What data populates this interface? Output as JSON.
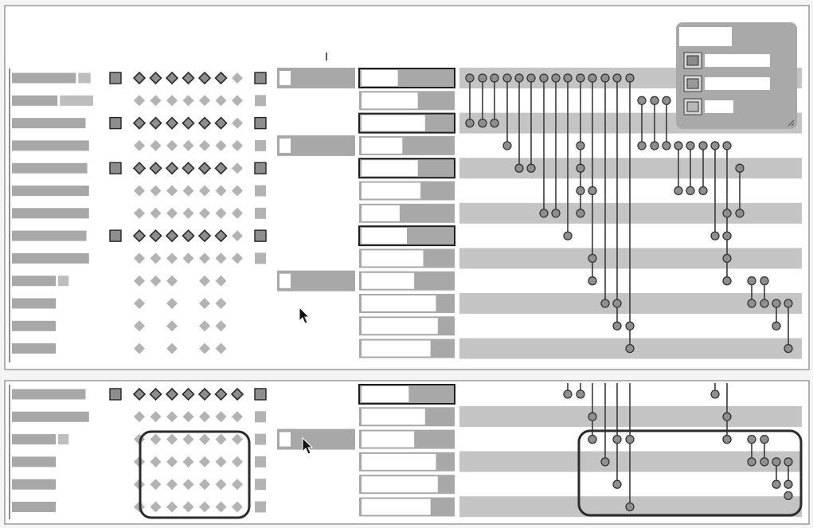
{
  "colors": {
    "background": "#f4f4f4",
    "panel": "#ffffff",
    "panel_border": "#9a9a9a",
    "bar": "#a8a8a8",
    "bar_light": "#bdbdbd",
    "band": "#c4c4c4",
    "diamond_outline": "#2a2a2a",
    "diamond_fill": "#8e8e8e",
    "diamond_faded": "#b3b3b3",
    "node": "#8f8f8f",
    "node_stroke": "#333333",
    "link": "#3a3a3a",
    "highlight": "#2b2b2b"
  },
  "legend": {
    "title": "",
    "items": [
      {
        "label": "",
        "swatch_level": "dark"
      },
      {
        "label": "",
        "swatch_level": "medium"
      },
      {
        "label": "",
        "swatch_level": "light"
      }
    ]
  },
  "panel_top": {
    "rows": [
      {
        "bar1": 0.73,
        "bar2": 0.14,
        "marker": true,
        "diamonds": "outlined",
        "box_fill": 0.0
      },
      {
        "bar1": 0.52,
        "bar2": 0.38,
        "marker": false,
        "diamonds": "faded",
        "box_fill": 0.0
      },
      {
        "bar1": 0.84,
        "bar2": 0.0,
        "marker": true,
        "diamonds": "outlined",
        "box_fill": 0.0
      },
      {
        "bar1": 0.88,
        "bar2": 0.0,
        "marker": false,
        "diamonds": "faded",
        "box_fill": 0.0
      },
      {
        "bar1": 0.86,
        "bar2": 0.0,
        "marker": true,
        "diamonds": "outlined",
        "box_fill": 0.0
      },
      {
        "bar1": 0.88,
        "bar2": 0.0,
        "marker": false,
        "diamonds": "faded",
        "box_fill": 0.0
      },
      {
        "bar1": 0.88,
        "bar2": 0.0,
        "marker": false,
        "diamonds": "faded",
        "box_fill": 0.0
      },
      {
        "bar1": 0.85,
        "bar2": 0.0,
        "marker": true,
        "diamonds": "outlined",
        "box_fill": 0.0
      },
      {
        "bar1": 0.88,
        "bar2": 0.0,
        "marker": false,
        "diamonds": "faded",
        "box_fill": 0.0
      },
      {
        "bar1": 0.5,
        "bar2": 0.12,
        "marker": false,
        "diamonds": "sparse1",
        "box_fill": 0.0
      },
      {
        "bar1": 0.5,
        "bar2": 0.0,
        "marker": false,
        "diamonds": "sparse2",
        "box_fill": 0.0
      },
      {
        "bar1": 0.5,
        "bar2": 0.0,
        "marker": false,
        "diamonds": "sparse2",
        "box_fill": 0.0
      },
      {
        "bar1": 0.5,
        "bar2": 0.0,
        "marker": false,
        "diamonds": "sparse2",
        "box_fill": 0.0
      }
    ],
    "mid_boxes": [
      {
        "row": 0,
        "fill": 0.82
      },
      {
        "row": 3,
        "fill": 0.82
      },
      {
        "row": 9,
        "fill": 0.82
      }
    ],
    "stacked": [
      {
        "white": 0.4,
        "outlined": true
      },
      {
        "white": 0.62,
        "outlined": false
      },
      {
        "white": 0.7,
        "outlined": true
      },
      {
        "white": 0.45,
        "outlined": false
      },
      {
        "white": 0.62,
        "outlined": true
      },
      {
        "white": 0.65,
        "outlined": false
      },
      {
        "white": 0.42,
        "outlined": false
      },
      {
        "white": 0.5,
        "outlined": true
      },
      {
        "white": 0.68,
        "outlined": false
      },
      {
        "white": 0.58,
        "outlined": false
      },
      {
        "white": 0.82,
        "outlined": false
      },
      {
        "white": 0.84,
        "outlined": false
      },
      {
        "white": 0.76,
        "outlined": false
      }
    ]
  },
  "panel_bottom": {
    "rows": [
      {
        "bar1": 0.84,
        "bar2": 0.0,
        "marker": true,
        "diamonds": "outlined"
      },
      {
        "bar1": 0.88,
        "bar2": 0.0,
        "marker": false,
        "diamonds": "faded"
      },
      {
        "bar1": 0.5,
        "bar2": 0.12,
        "marker": false,
        "diamonds": "faded"
      },
      {
        "bar1": 0.5,
        "bar2": 0.0,
        "marker": false,
        "diamonds": "faded"
      },
      {
        "bar1": 0.5,
        "bar2": 0.0,
        "marker": false,
        "diamonds": "faded"
      },
      {
        "bar1": 0.5,
        "bar2": 0.0,
        "marker": false,
        "diamonds": "faded"
      }
    ],
    "mid_boxes": [
      {
        "row": 2,
        "fill": 0.82
      }
    ],
    "stacked": [
      {
        "white": 0.52,
        "outlined": true
      },
      {
        "white": 0.7,
        "outlined": false
      },
      {
        "white": 0.58,
        "outlined": false
      },
      {
        "white": 0.82,
        "outlined": false
      },
      {
        "white": 0.84,
        "outlined": false
      },
      {
        "white": 0.76,
        "outlined": false
      }
    ]
  }
}
